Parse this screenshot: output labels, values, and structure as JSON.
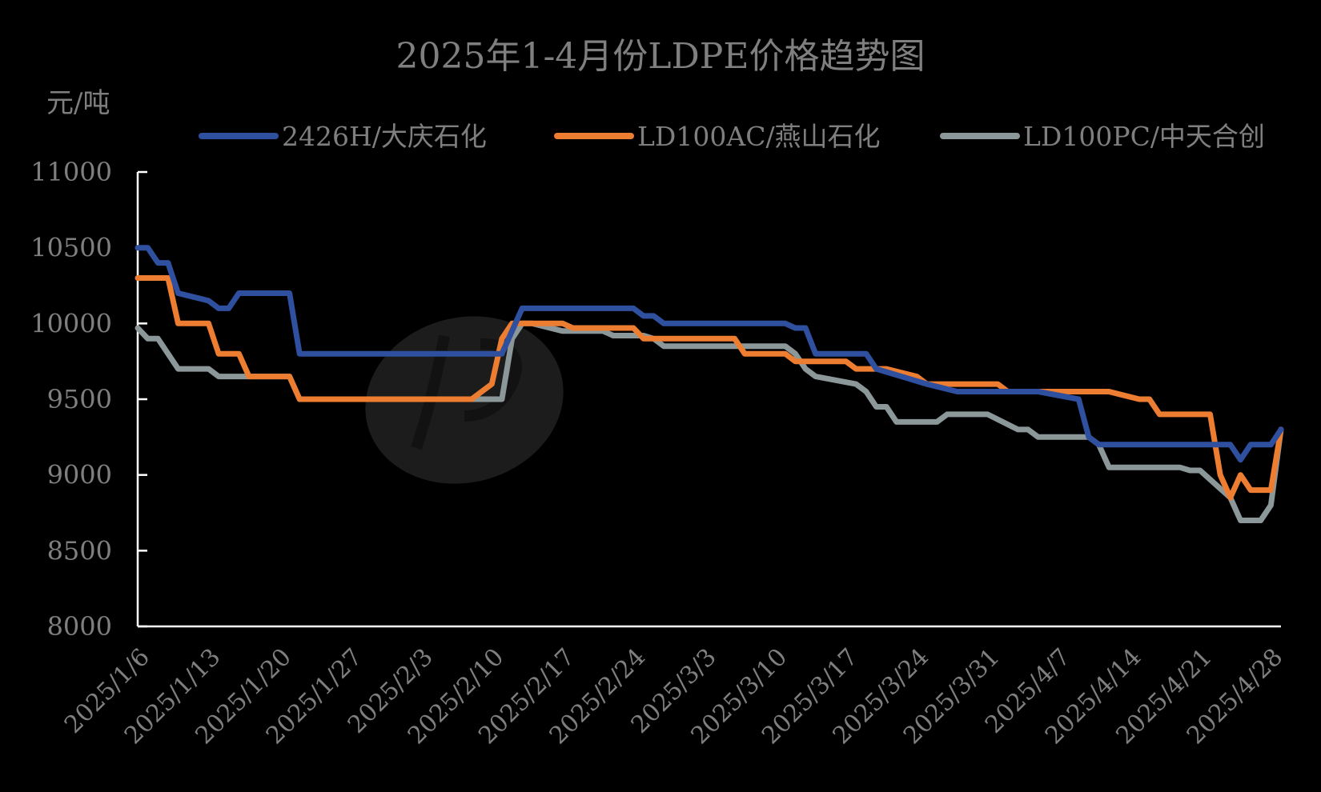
{
  "chart_data": {
    "type": "line",
    "title": "2025年1-4月份LDPE价格趋势图",
    "ylabel": "元/吨",
    "ylim": [
      8000,
      11000
    ],
    "yticks": [
      8000,
      8500,
      9000,
      9500,
      10000,
      10500,
      11000
    ],
    "x_start": "2025-01-06",
    "x_end": "2025-04-28",
    "xticks": [
      "2025/1/6",
      "2025/1/13",
      "2025/1/20",
      "2025/1/27",
      "2025/2/3",
      "2025/2/10",
      "2025/2/17",
      "2025/2/24",
      "2025/3/3",
      "2025/3/10",
      "2025/3/17",
      "2025/3/24",
      "2025/3/31",
      "2025/4/7",
      "2025/4/14",
      "2025/4/21",
      "2025/4/28"
    ],
    "grid": false,
    "legend_position": "top",
    "series": [
      {
        "name": "2426H/大庆石化",
        "color": "#2f4f9f",
        "points": [
          [
            "2025-01-06",
            10500
          ],
          [
            "2025-01-07",
            10500
          ],
          [
            "2025-01-08",
            10400
          ],
          [
            "2025-01-09",
            10400
          ],
          [
            "2025-01-10",
            10200
          ],
          [
            "2025-01-13",
            10150
          ],
          [
            "2025-01-14",
            10100
          ],
          [
            "2025-01-15",
            10100
          ],
          [
            "2025-01-16",
            10200
          ],
          [
            "2025-01-21",
            10200
          ],
          [
            "2025-01-22",
            9800
          ],
          [
            "2025-02-11",
            9800
          ],
          [
            "2025-02-13",
            10100
          ],
          [
            "2025-02-24",
            10100
          ],
          [
            "2025-02-25",
            10050
          ],
          [
            "2025-02-26",
            10050
          ],
          [
            "2025-02-27",
            10000
          ],
          [
            "2025-03-11",
            10000
          ],
          [
            "2025-03-12",
            9970
          ],
          [
            "2025-03-13",
            9970
          ],
          [
            "2025-03-14",
            9800
          ],
          [
            "2025-03-19",
            9800
          ],
          [
            "2025-03-20",
            9700
          ],
          [
            "2025-03-25",
            9600
          ],
          [
            "2025-03-28",
            9550
          ],
          [
            "2025-04-05",
            9550
          ],
          [
            "2025-04-09",
            9500
          ],
          [
            "2025-04-10",
            9250
          ],
          [
            "2025-04-11",
            9200
          ],
          [
            "2025-04-24",
            9200
          ],
          [
            "2025-04-25",
            9100
          ],
          [
            "2025-04-26",
            9200
          ],
          [
            "2025-04-28",
            9200
          ],
          [
            "2025-04-29",
            9300
          ]
        ]
      },
      {
        "name": "LD100AC/燕山石化",
        "color": "#ed7d31",
        "points": [
          [
            "2025-01-06",
            10300
          ],
          [
            "2025-01-09",
            10300
          ],
          [
            "2025-01-10",
            10000
          ],
          [
            "2025-01-13",
            10000
          ],
          [
            "2025-01-14",
            9800
          ],
          [
            "2025-01-16",
            9800
          ],
          [
            "2025-01-17",
            9650
          ],
          [
            "2025-01-21",
            9650
          ],
          [
            "2025-01-22",
            9500
          ],
          [
            "2025-02-08",
            9500
          ],
          [
            "2025-02-10",
            9600
          ],
          [
            "2025-02-11",
            9900
          ],
          [
            "2025-02-12",
            10000
          ],
          [
            "2025-02-17",
            10000
          ],
          [
            "2025-02-18",
            9970
          ],
          [
            "2025-02-24",
            9970
          ],
          [
            "2025-02-25",
            9900
          ],
          [
            "2025-03-06",
            9900
          ],
          [
            "2025-03-07",
            9800
          ],
          [
            "2025-03-11",
            9800
          ],
          [
            "2025-03-12",
            9750
          ],
          [
            "2025-03-17",
            9750
          ],
          [
            "2025-03-18",
            9700
          ],
          [
            "2025-03-21",
            9700
          ],
          [
            "2025-03-24",
            9650
          ],
          [
            "2025-03-25",
            9600
          ],
          [
            "2025-04-01",
            9600
          ],
          [
            "2025-04-02",
            9550
          ],
          [
            "2025-04-12",
            9550
          ],
          [
            "2025-04-15",
            9500
          ],
          [
            "2025-04-16",
            9500
          ],
          [
            "2025-04-17",
            9400
          ],
          [
            "2025-04-22",
            9400
          ],
          [
            "2025-04-23",
            9000
          ],
          [
            "2025-04-24",
            8850
          ],
          [
            "2025-04-25",
            9000
          ],
          [
            "2025-04-26",
            8900
          ],
          [
            "2025-04-28",
            8900
          ],
          [
            "2025-04-29",
            9300
          ]
        ]
      },
      {
        "name": "LD100PC/中天合创",
        "color": "#8c9799",
        "points": [
          [
            "2025-01-06",
            9970
          ],
          [
            "2025-01-07",
            9900
          ],
          [
            "2025-01-08",
            9900
          ],
          [
            "2025-01-10",
            9700
          ],
          [
            "2025-01-13",
            9700
          ],
          [
            "2025-01-14",
            9650
          ],
          [
            "2025-01-21",
            9650
          ],
          [
            "2025-01-22",
            9500
          ],
          [
            "2025-02-11",
            9500
          ],
          [
            "2025-02-12",
            9900
          ],
          [
            "2025-02-13",
            10000
          ],
          [
            "2025-02-14",
            10000
          ],
          [
            "2025-02-17",
            9950
          ],
          [
            "2025-02-21",
            9950
          ],
          [
            "2025-02-22",
            9920
          ],
          [
            "2025-02-25",
            9920
          ],
          [
            "2025-02-26",
            9900
          ],
          [
            "2025-02-27",
            9850
          ],
          [
            "2025-03-11",
            9850
          ],
          [
            "2025-03-12",
            9800
          ],
          [
            "2025-03-13",
            9700
          ],
          [
            "2025-03-14",
            9650
          ],
          [
            "2025-03-18",
            9600
          ],
          [
            "2025-03-19",
            9550
          ],
          [
            "2025-03-20",
            9450
          ],
          [
            "2025-03-21",
            9450
          ],
          [
            "2025-03-22",
            9350
          ],
          [
            "2025-03-26",
            9350
          ],
          [
            "2025-03-27",
            9400
          ],
          [
            "2025-03-31",
            9400
          ],
          [
            "2025-04-03",
            9300
          ],
          [
            "2025-04-04",
            9300
          ],
          [
            "2025-04-05",
            9250
          ],
          [
            "2025-04-10",
            9250
          ],
          [
            "2025-04-11",
            9200
          ],
          [
            "2025-04-12",
            9050
          ],
          [
            "2025-04-19",
            9050
          ],
          [
            "2025-04-20",
            9030
          ],
          [
            "2025-04-21",
            9030
          ],
          [
            "2025-04-24",
            8850
          ],
          [
            "2025-04-25",
            8700
          ],
          [
            "2025-04-27",
            8700
          ],
          [
            "2025-04-28",
            8800
          ],
          [
            "2025-04-29",
            9300
          ]
        ]
      }
    ]
  }
}
